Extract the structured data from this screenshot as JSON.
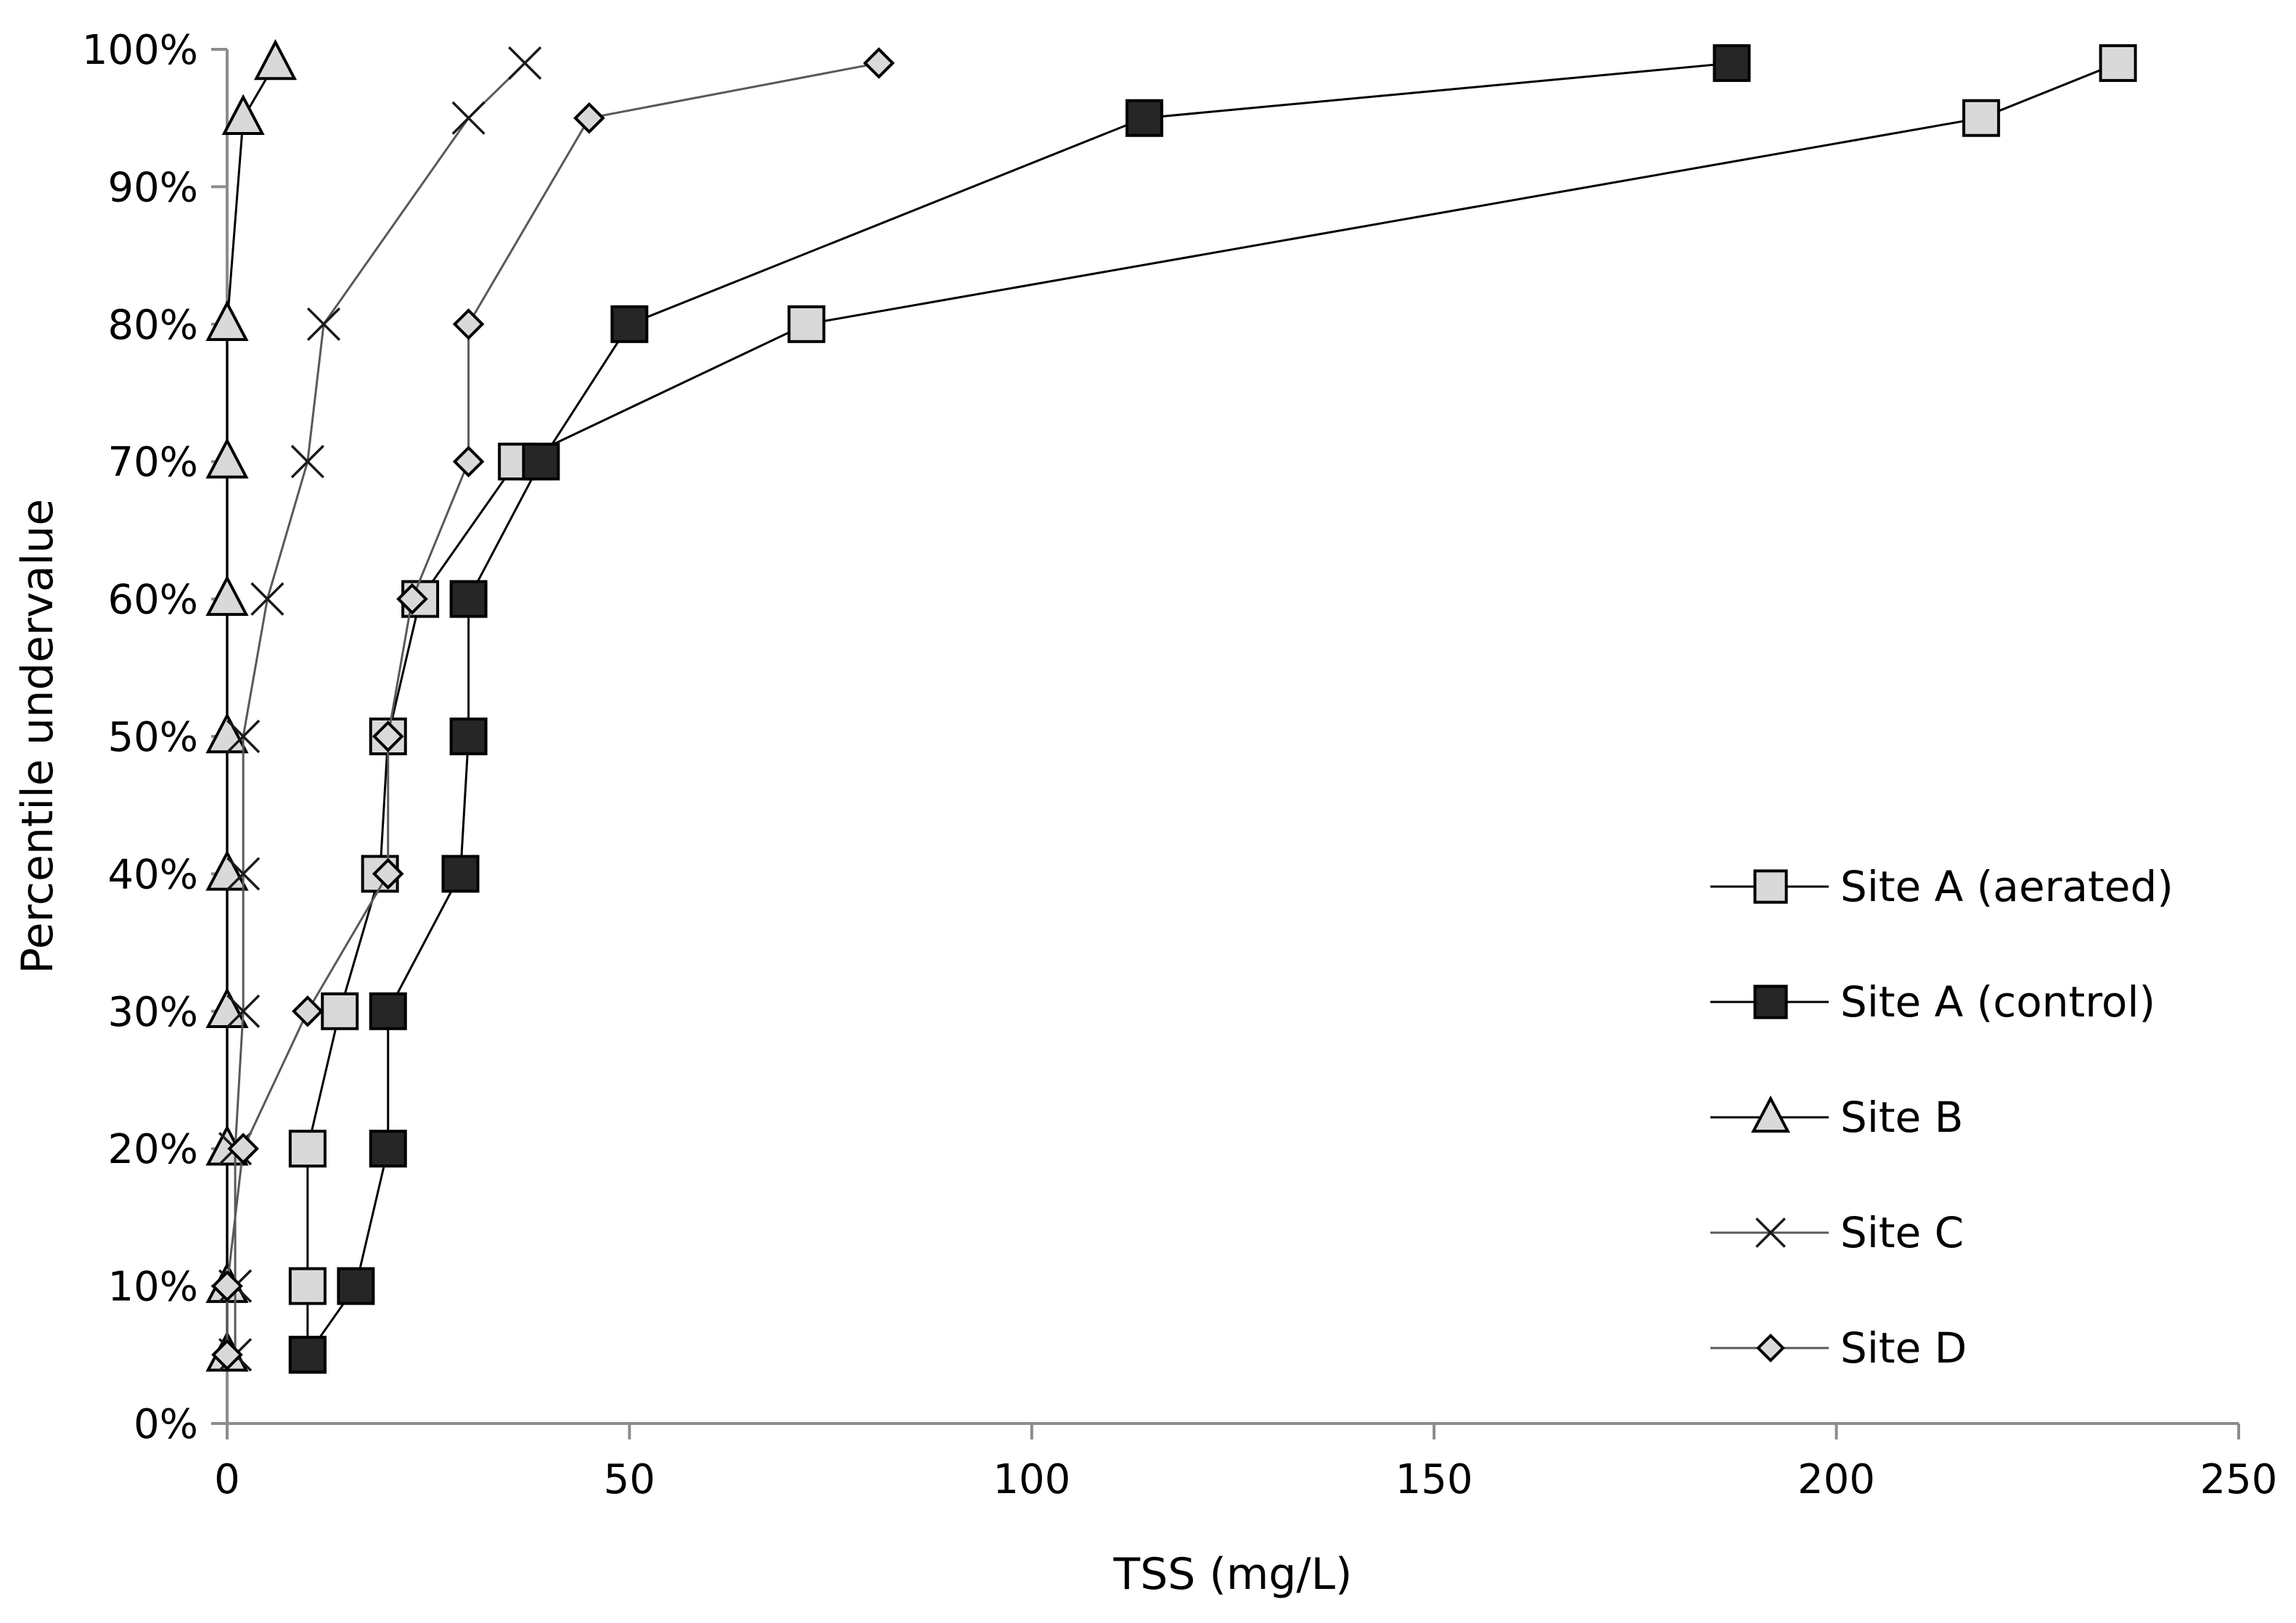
{
  "chart_data": {
    "type": "scatter",
    "xlabel": "TSS (mg/L)",
    "ylabel": "Percentile undervalue",
    "xlim": [
      0,
      250
    ],
    "ylim": [
      0,
      1
    ],
    "x_ticks": [
      0,
      50,
      100,
      150,
      200,
      250
    ],
    "x_tick_labels": [
      "0",
      "50",
      "100",
      "150",
      "200",
      "250"
    ],
    "y_ticks": [
      0,
      0.1,
      0.2,
      0.3,
      0.4,
      0.5,
      0.6,
      0.7,
      0.8,
      0.9,
      1.0
    ],
    "y_tick_labels": [
      "0%",
      "10%",
      "20%",
      "30%",
      "40%",
      "50%",
      "60%",
      "70%",
      "80%",
      "90%",
      "100%"
    ],
    "grid": false,
    "legend_position": "right",
    "percentiles": [
      0.05,
      0.1,
      0.2,
      0.3,
      0.4,
      0.5,
      0.6,
      0.7,
      0.8,
      0.95,
      0.99
    ],
    "series": [
      {
        "name": "Site A (aerated)",
        "marker": "square",
        "fill": "#d9d9d9",
        "line_color": "#000000",
        "x": [
          10,
          10,
          10,
          14,
          19,
          20,
          24,
          36,
          72,
          218,
          235
        ]
      },
      {
        "name": "Site A (control)",
        "marker": "square",
        "fill": "#262626",
        "line_color": "#000000",
        "x": [
          10,
          16,
          20,
          20,
          29,
          30,
          30,
          39,
          50,
          114,
          187
        ]
      },
      {
        "name": "Site B",
        "marker": "triangle",
        "fill": "#d9d9d9",
        "line_color": "#000000",
        "x": [
          0,
          0,
          0,
          0,
          0,
          0,
          0,
          0,
          0,
          2,
          6
        ]
      },
      {
        "name": "Site C",
        "marker": "x",
        "fill": "none",
        "line_color": "#595959",
        "x": [
          1,
          1,
          1,
          2,
          2,
          2,
          5,
          10,
          12,
          30,
          37
        ]
      },
      {
        "name": "Site D",
        "marker": "diamond",
        "fill": "#d9d9d9",
        "line_color": "#595959",
        "x": [
          0,
          0,
          2,
          10,
          20,
          20,
          23,
          30,
          30,
          45,
          81
        ]
      }
    ]
  }
}
